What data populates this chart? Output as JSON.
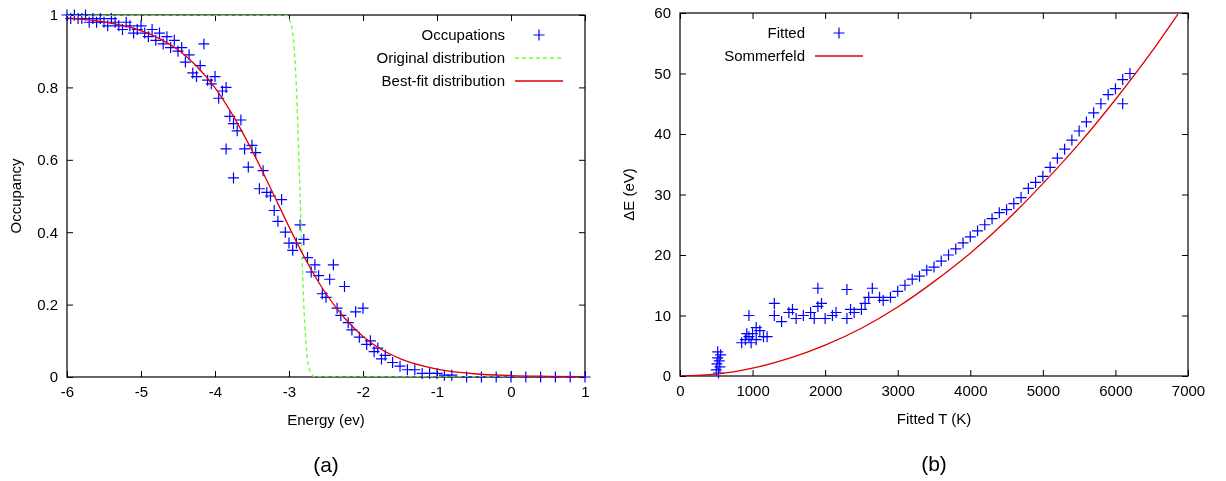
{
  "chart_data": [
    {
      "type": "scatter",
      "xlabel": "Energy (ev)",
      "ylabel": "Occupancy",
      "annotations": [
        "(a)"
      ],
      "xlim": [
        -6,
        1
      ],
      "ylim": [
        0,
        1
      ],
      "xticks": [
        -6,
        -5,
        -4,
        -3,
        -2,
        -1,
        0,
        1
      ],
      "yticks": [
        0,
        0.2,
        0.4,
        0.6,
        0.8,
        1
      ],
      "legend": "top right",
      "series": [
        {
          "name": "Occupations",
          "marker": "cross",
          "color": "#0000ff",
          "x": [
            -6.0,
            -5.95,
            -5.9,
            -5.85,
            -5.8,
            -5.75,
            -5.7,
            -5.65,
            -5.6,
            -5.55,
            -5.5,
            -5.45,
            -5.4,
            -5.35,
            -5.3,
            -5.25,
            -5.2,
            -5.15,
            -5.1,
            -5.05,
            -5.0,
            -4.95,
            -4.9,
            -4.85,
            -4.8,
            -4.75,
            -4.7,
            -4.65,
            -4.6,
            -4.55,
            -4.5,
            -4.45,
            -4.4,
            -4.35,
            -4.3,
            -4.25,
            -4.2,
            -4.15,
            -4.1,
            -4.05,
            -4.0,
            -3.95,
            -3.9,
            -3.85,
            -3.8,
            -3.75,
            -3.7,
            -3.65,
            -3.85,
            -3.75,
            -3.6,
            -3.55,
            -3.5,
            -3.45,
            -3.4,
            -3.35,
            -3.3,
            -3.25,
            -3.2,
            -3.15,
            -3.1,
            -3.05,
            -3.0,
            -2.95,
            -2.9,
            -2.85,
            -2.8,
            -2.75,
            -2.7,
            -2.65,
            -2.6,
            -2.55,
            -2.5,
            -2.45,
            -2.4,
            -2.35,
            -2.3,
            -2.25,
            -2.2,
            -2.15,
            -2.1,
            -2.05,
            -2.0,
            -1.95,
            -1.9,
            -1.85,
            -1.8,
            -1.75,
            -1.7,
            -1.6,
            -1.5,
            -1.4,
            -1.3,
            -1.2,
            -1.1,
            -1.0,
            -0.9,
            -0.8,
            -0.6,
            -0.4,
            -0.2,
            0.0,
            0.2,
            0.4,
            0.6,
            0.8,
            1.0
          ],
          "values": [
            1,
            0.99,
            1,
            0.99,
            0.99,
            1,
            0.98,
            0.99,
            0.98,
            0.99,
            0.98,
            0.97,
            0.99,
            0.98,
            0.97,
            0.96,
            0.98,
            0.97,
            0.95,
            0.96,
            0.97,
            0.95,
            0.94,
            0.96,
            0.93,
            0.95,
            0.92,
            0.94,
            0.91,
            0.93,
            0.9,
            0.91,
            0.87,
            0.89,
            0.84,
            0.83,
            0.86,
            0.92,
            0.82,
            0.81,
            0.83,
            0.77,
            0.79,
            0.8,
            0.72,
            0.7,
            0.68,
            0.71,
            0.63,
            0.55,
            0.63,
            0.58,
            0.64,
            0.62,
            0.52,
            0.57,
            0.51,
            0.5,
            0.46,
            0.43,
            0.49,
            0.4,
            0.37,
            0.35,
            0.37,
            0.42,
            0.38,
            0.33,
            0.29,
            0.31,
            0.28,
            0.23,
            0.22,
            0.27,
            0.31,
            0.19,
            0.17,
            0.25,
            0.15,
            0.13,
            0.18,
            0.11,
            0.19,
            0.09,
            0.1,
            0.07,
            0.08,
            0.05,
            0.06,
            0.04,
            0.03,
            0.02,
            0.02,
            0.01,
            0.01,
            0.01,
            0.005,
            0.005,
            0,
            0,
            0,
            0,
            0,
            0,
            0,
            0,
            0
          ]
        },
        {
          "name": "Original distribution",
          "type": "line",
          "line_style": "dashed",
          "color": "#66ff33",
          "x": [
            -6,
            -3.05,
            -3.0,
            -2.95,
            -2.9,
            -2.85,
            -2.8,
            -2.75,
            -2.7,
            -2.65,
            1
          ],
          "values": [
            1,
            1,
            0.99,
            0.95,
            0.8,
            0.5,
            0.2,
            0.05,
            0.01,
            0,
            0
          ]
        },
        {
          "name": "Best-fit distribution",
          "type": "line",
          "line_style": "solid",
          "color": "#dd0000",
          "x": [
            -6,
            -5.5,
            -5,
            -4.5,
            -4.25,
            -4,
            -3.75,
            -3.5,
            -3.25,
            -3,
            -2.75,
            -2.5,
            -2.25,
            -2,
            -1.75,
            -1.5,
            -1,
            -0.5,
            0,
            0.5,
            1
          ],
          "values": [
            0.992,
            0.981,
            0.957,
            0.904,
            0.859,
            0.799,
            0.72,
            0.626,
            0.522,
            0.415,
            0.315,
            0.23,
            0.163,
            0.112,
            0.076,
            0.051,
            0.022,
            0.009,
            0.004,
            0.002,
            0.001
          ]
        }
      ]
    },
    {
      "type": "scatter",
      "xlabel": "Fitted T (K)",
      "ylabel": "ΔE (eV)",
      "annotations": [
        "(b)"
      ],
      "xlim": [
        0,
        7000
      ],
      "ylim": [
        0,
        60
      ],
      "xticks": [
        0,
        1000,
        2000,
        3000,
        4000,
        5000,
        6000,
        7000
      ],
      "yticks": [
        0,
        10,
        20,
        30,
        40,
        50,
        60
      ],
      "legend": "top left",
      "series": [
        {
          "name": "Fitted",
          "marker": "cross",
          "color": "#0000ff",
          "x": [
            500,
            510,
            520,
            530,
            540,
            550,
            560,
            520,
            850,
            900,
            950,
            1000,
            1050,
            1100,
            920,
            980,
            1150,
            950,
            1200,
            1050,
            1300,
            1300,
            1400,
            1500,
            1550,
            1600,
            1700,
            1800,
            1850,
            1900,
            1900,
            1950,
            2000,
            2100,
            2150,
            2300,
            2300,
            2350,
            2400,
            2500,
            2550,
            2600,
            2650,
            2750,
            2800,
            2900,
            3000,
            3100,
            3200,
            3300,
            3400,
            3500,
            3600,
            3700,
            3800,
            3900,
            4000,
            4100,
            4200,
            4300,
            4400,
            4500,
            4600,
            4700,
            4800,
            4900,
            5000,
            5100,
            5200,
            5300,
            5400,
            5500,
            5600,
            5700,
            5800,
            5900,
            6000,
            6100,
            6200,
            6100
          ],
          "values": [
            1,
            2,
            3,
            0.5,
            2.5,
            1.5,
            3.5,
            4,
            5.5,
            6,
            6.5,
            7,
            6,
            7.5,
            7,
            5.5,
            6.5,
            10,
            6.5,
            8,
            12,
            10,
            9,
            10.5,
            11,
            9.5,
            10,
            10.5,
            9.5,
            14.5,
            11.5,
            12,
            9.5,
            10,
            10.5,
            14.3,
            9.5,
            11,
            10.5,
            11,
            12,
            13,
            14.5,
            13,
            12.5,
            13,
            14,
            15,
            16,
            16.5,
            17.5,
            18,
            19,
            20,
            21,
            22,
            23,
            24,
            25,
            26,
            27,
            27.5,
            28.5,
            29.5,
            31,
            32,
            33,
            34.5,
            36,
            37.5,
            39,
            40.5,
            42,
            43.5,
            45,
            46.5,
            47.5,
            49,
            50,
            45
          ]
        },
        {
          "name": "Sommerfeld",
          "type": "line",
          "line_style": "solid",
          "color": "#dd0000",
          "x": [
            0,
            500,
            1000,
            1500,
            2000,
            2500,
            3000,
            3500,
            4000,
            4500,
            5000,
            5500,
            6000,
            6500,
            6860
          ],
          "values": [
            0,
            0.3,
            1.3,
            2.9,
            5.1,
            7.9,
            11.4,
            15.6,
            20.3,
            25.7,
            31.8,
            38.4,
            45.7,
            53.6,
            59.8
          ]
        }
      ]
    }
  ]
}
